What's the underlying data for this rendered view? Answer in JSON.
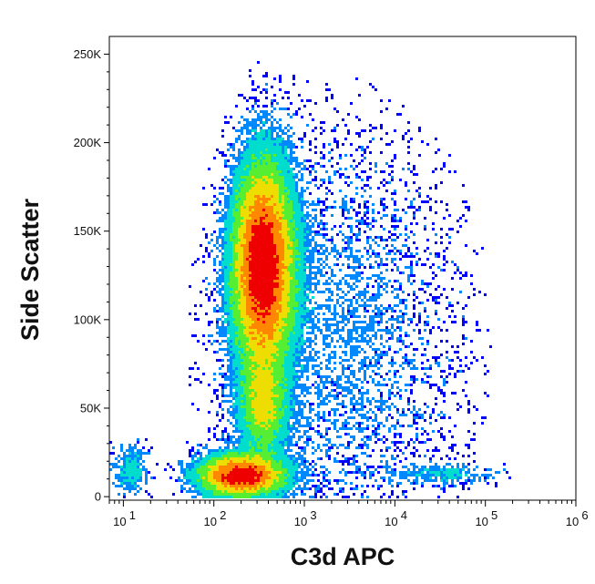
{
  "chart_data": {
    "type": "scatter",
    "subtype": "flow-cytometry-density-plot",
    "xlabel": "C3d APC",
    "ylabel": "Side Scatter",
    "x_scale": "log",
    "xlim": [
      7,
      1000000
    ],
    "ylim": [
      -2000,
      260000
    ],
    "x_ticks": [
      {
        "value": 10,
        "label": "10",
        "exp": "1"
      },
      {
        "value": 100,
        "label": "10",
        "exp": "2"
      },
      {
        "value": 1000,
        "label": "10",
        "exp": "3"
      },
      {
        "value": 10000,
        "label": "10",
        "exp": "4"
      },
      {
        "value": 100000,
        "label": "10",
        "exp": "5"
      },
      {
        "value": 1000000,
        "label": "10",
        "exp": "6"
      }
    ],
    "y_ticks": [
      {
        "value": 0,
        "label": "0"
      },
      {
        "value": 50000,
        "label": "50K"
      },
      {
        "value": 100000,
        "label": "100K"
      },
      {
        "value": 150000,
        "label": "150K"
      },
      {
        "value": 200000,
        "label": "200K"
      },
      {
        "value": 250000,
        "label": "250K"
      }
    ],
    "grid": false,
    "color_scale": [
      "#0000ff",
      "#0088ff",
      "#00ddcc",
      "#55ee33",
      "#eedd00",
      "#ff8800",
      "#ee0000"
    ],
    "populations": [
      {
        "x_center": 200,
        "y_center": 12000,
        "x_spread_decades": 0.28,
        "y_spread": 7000,
        "relative_count": 0.34
      },
      {
        "x_center": 350,
        "y_center": 130000,
        "x_spread_decades": 0.2,
        "y_spread": 35000,
        "relative_count": 0.36
      },
      {
        "x_center": 350,
        "y_center": 50000,
        "x_spread_decades": 0.16,
        "y_spread": 16000,
        "relative_count": 0.13
      },
      {
        "x_center": 35000,
        "y_center": 13000,
        "x_spread_decades": 0.35,
        "y_spread": 3500,
        "relative_count": 0.04
      },
      {
        "x_center": 12,
        "y_center": 15000,
        "x_spread_decades": 0.12,
        "y_spread": 9000,
        "relative_count": 0.05
      },
      {
        "x_center": 2500,
        "y_center": 90000,
        "x_spread_decades": 0.8,
        "y_spread": 70000,
        "relative_count": 0.02
      }
    ]
  }
}
